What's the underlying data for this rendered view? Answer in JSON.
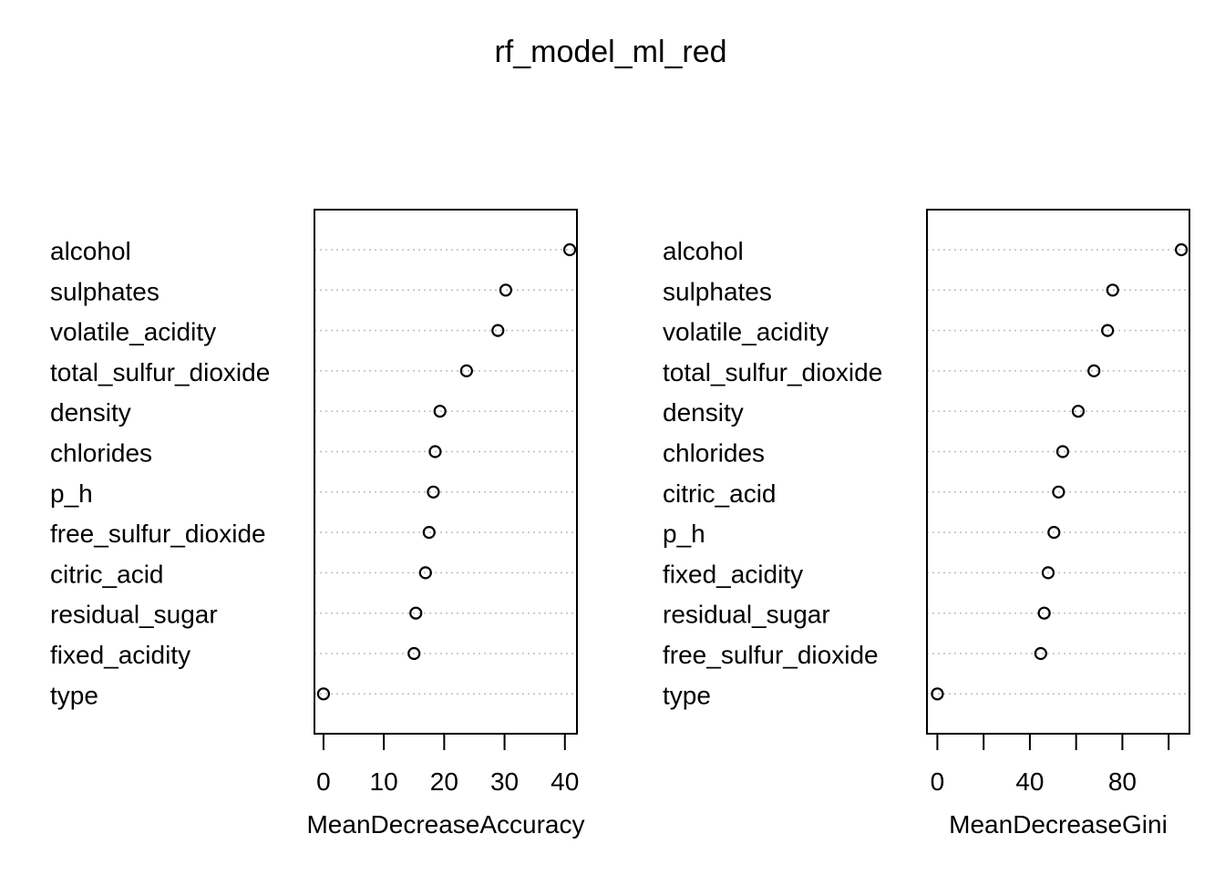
{
  "chart_data": [
    {
      "type": "scatter",
      "title": "rf_model_ml_red",
      "xlabel": "MeanDecreaseAccuracy",
      "ylabel": "",
      "xlim": [
        -1.5,
        42
      ],
      "xticks": [
        0,
        10,
        20,
        30,
        40
      ],
      "categories": [
        "alcohol",
        "sulphates",
        "volatile_acidity",
        "total_sulfur_dioxide",
        "density",
        "chlorides",
        "p_h",
        "free_sulfur_dioxide",
        "citric_acid",
        "residual_sugar",
        "fixed_acidity",
        "type"
      ],
      "values": [
        40.8,
        30.2,
        28.9,
        23.7,
        19.3,
        18.5,
        18.2,
        17.5,
        16.9,
        15.3,
        15.0,
        0.0
      ],
      "grid": "dotted horizontal guides"
    },
    {
      "type": "scatter",
      "title": "",
      "xlabel": "MeanDecreaseGini",
      "ylabel": "",
      "xlim": [
        -4.5,
        109
      ],
      "xticks": [
        0,
        40,
        80
      ],
      "minor_ticks": [
        20,
        60,
        100
      ],
      "categories": [
        "alcohol",
        "sulphates",
        "volatile_acidity",
        "total_sulfur_dioxide",
        "density",
        "chlorides",
        "citric_acid",
        "p_h",
        "fixed_acidity",
        "residual_sugar",
        "free_sulfur_dioxide",
        "type"
      ],
      "values": [
        105.5,
        75.8,
        73.6,
        67.7,
        60.9,
        54.2,
        52.4,
        50.4,
        47.9,
        46.2,
        44.7,
        0.0
      ],
      "grid": "dotted horizontal guides"
    }
  ]
}
